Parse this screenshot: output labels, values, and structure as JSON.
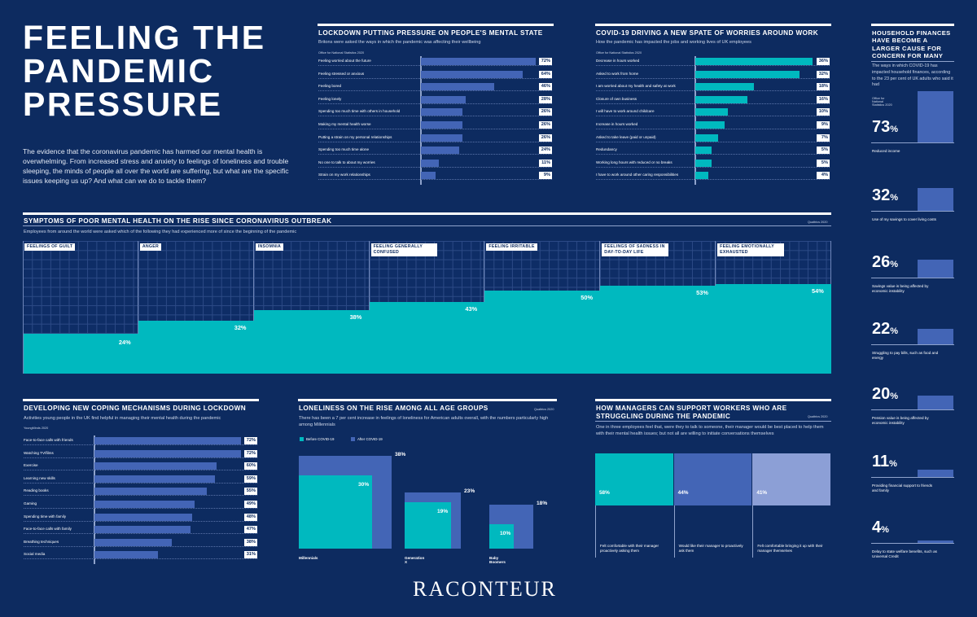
{
  "main_title": "FEELING THE\nPANDEMIC\nPRESSURE",
  "intro": "The evidence that the coronavirus pandemic has harmed our mental health is overwhelming. From increased stress and anxiety to feelings of loneliness and trouble sleeping, the minds of people all over the world are suffering, but what are the specific issues keeping us up? And what can we do to tackle them?",
  "brand": "RACONTEUR",
  "colors": {
    "background": "#0d2b60",
    "bar_purple": "#4365b6",
    "bar_teal": "#00b9bf",
    "light_purple": "#8c9fd6"
  },
  "chart_data": [
    {
      "id": "lockdown",
      "type": "bar",
      "title": "LOCKDOWN PUTTING PRESSURE ON PEOPLE'S MENTAL STATE",
      "subtitle": "Britons were asked the ways in which the pandemic was affecting their wellbeing",
      "source": "Office for National Statistics 2020",
      "categories": [
        "Feeling worried about the future",
        "Feeling stressed or anxious",
        "Feeling bored",
        "Feeling lonely",
        "Spending too much time with others in household",
        "Making my mental health worse",
        "Putting a strain on my personal relationships",
        "Spending too much time alone",
        "No one to talk to about my worries",
        "Strain on my work relationships"
      ],
      "values": [
        72,
        64,
        46,
        28,
        26,
        26,
        26,
        24,
        11,
        9
      ],
      "labels": [
        "72%",
        "64%",
        "46%",
        "28%",
        "26%",
        "26%",
        "26%",
        "24%",
        "11%",
        "9%"
      ],
      "xlim": [
        0,
        72
      ]
    },
    {
      "id": "work",
      "type": "bar",
      "title": "COVID-19 DRIVING A NEW SPATE OF WORRIES AROUND WORK",
      "subtitle": "How the pandemic has impacted the jobs and working lives of UK employees",
      "source": "Office for National Statistics 2020",
      "categories": [
        "Decrease in hours worked",
        "Asked to work from home",
        "I am worried about my health and safety at work",
        "Closure of own business",
        "I will have to work around childcare",
        "Increase in hours worked",
        "Asked to take leave (paid or unpaid)",
        "Redundancy",
        "Working long hours with reduced or no breaks",
        "I have to work around other caring responsibilities"
      ],
      "values": [
        36,
        32,
        18,
        16,
        10,
        9,
        7,
        5,
        5,
        4
      ],
      "labels": [
        "36%",
        "32%",
        "18%",
        "16%",
        "10%",
        "9%",
        "7%",
        "5%",
        "5%",
        "4%"
      ],
      "xlim": [
        0,
        36
      ]
    },
    {
      "id": "symptoms",
      "type": "bar",
      "title": "SYMPTOMS OF POOR MENTAL HEALTH ON THE RISE SINCE CORONAVIRUS OUTBREAK",
      "subtitle": "Employees from around the world were asked which of the following they had experienced more of since the beginning of the pandemic",
      "source": "Qualtrics 2020",
      "categories": [
        "FEELINGS OF GUILT",
        "ANGER",
        "INSOMNIA",
        "FEELING GENERALLY CONFUSED",
        "FEELING IRRITABLE",
        "FEELINGS OF SADNESS IN DAY-TO-DAY LIFE",
        "FEELING EMOTIONALLY EXHAUSTED"
      ],
      "values": [
        24,
        32,
        38,
        43,
        50,
        53,
        54
      ],
      "labels": [
        "24%",
        "32%",
        "38%",
        "43%",
        "50%",
        "53%",
        "54%"
      ],
      "ylim": [
        0,
        100
      ]
    },
    {
      "id": "coping",
      "type": "bar",
      "title": "DEVELOPING NEW COPING MECHANISMS DURING LOCKDOWN",
      "subtitle": "Activities young people in the UK find helpful in managing their mental health during the pandemic",
      "source": "YoungMinds 2020",
      "categories": [
        "Face-to-face calls with friends",
        "Watching TV/films",
        "Exercise",
        "Learning new skills",
        "Reading books",
        "Gaming",
        "Spending time with family",
        "Face-to-face calls with family",
        "Breathing techniques",
        "Social media"
      ],
      "values": [
        72,
        72,
        60,
        59,
        55,
        49,
        48,
        47,
        38,
        31
      ],
      "labels": [
        "72%",
        "72%",
        "60%",
        "59%",
        "55%",
        "49%",
        "48%",
        "47%",
        "38%",
        "31%"
      ],
      "xlim": [
        0,
        72
      ]
    },
    {
      "id": "loneliness",
      "type": "bar",
      "title": "LONELINESS ON THE RISE AMONG ALL AGE GROUPS",
      "subtitle": "There has been a 7 per cent increase in feelings of loneliness for American adults overall, with the numbers particularly high among Millennials",
      "source": "Qualtrics 2020",
      "categories": [
        "Millennials",
        "Generation X",
        "Baby Boomers"
      ],
      "series": [
        {
          "name": "Before COVID-19",
          "values": [
            30,
            19,
            10
          ],
          "labels": [
            "30%",
            "19%",
            "10%"
          ],
          "color": "#00b9bf"
        },
        {
          "name": "After COVID-19",
          "values": [
            38,
            23,
            18
          ],
          "labels": [
            "38%",
            "23%",
            "18%"
          ],
          "color": "#4365b6"
        }
      ],
      "ylim": [
        0,
        38
      ]
    },
    {
      "id": "managers",
      "type": "bar",
      "title": "HOW MANAGERS CAN SUPPORT WORKERS WHO ARE STRUGGLING DURING THE PANDEMIC",
      "subtitle": "One in three employees feel that, were they to talk to someone, their manager would be best placed to help them with their mental health issues; but not all are willing to initiate conversations themselves",
      "source": "Qualtrics 2020",
      "categories": [
        "Felt comfortable with their manager proactively asking them",
        "Would like their manager to proactively ask them",
        "Felt comfortable bringing it up with their manager themselves"
      ],
      "values": [
        58,
        44,
        41
      ],
      "labels": [
        "58%",
        "44%",
        "41%"
      ],
      "colors": [
        "#00b9bf",
        "#4365b6",
        "#8c9fd6"
      ]
    },
    {
      "id": "household",
      "type": "bar",
      "title": "HOUSEHOLD FINANCES HAVE BECOME A LARGER CAUSE FOR CONCERN FOR MANY",
      "subtitle": "The ways in which COVID-19 has impacted household finances, according to the 23 per cent of UK adults who said it had",
      "source": "Office for National Statistics 2020",
      "categories": [
        "Reduced income",
        "Use of my savings to cover living costs",
        "Savings value is being affected by economic instability",
        "Struggling to pay bills, such as food and energy",
        "Pension value is being affected by economic instability",
        "Providing financial support to friends and family",
        "Delay to state welfare benefits, such as Universal Credit"
      ],
      "values": [
        73,
        32,
        26,
        22,
        20,
        11,
        4
      ],
      "number_labels": [
        "73",
        "32",
        "26",
        "22",
        "20",
        "11",
        "4"
      ],
      "pct_sign": "%",
      "ylim": [
        0,
        73
      ]
    }
  ]
}
